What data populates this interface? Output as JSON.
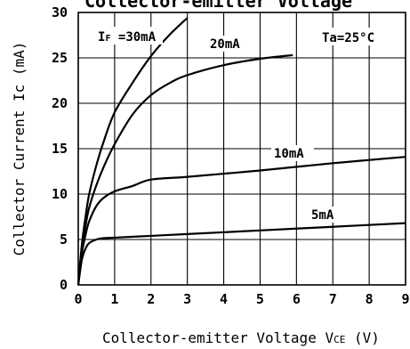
{
  "chart_data": {
    "type": "line",
    "title": "Collector-emitter Voltage",
    "xlabel": "Collector-emitter Voltage V",
    "xlabel_sub": "CE",
    "xlabel_unit": " (V)",
    "ylabel": "Collector Current Ic (mA)",
    "xlim": [
      0,
      9
    ],
    "ylim": [
      0,
      30
    ],
    "x_ticks": [
      "0",
      "1",
      "2",
      "3",
      "4",
      "5",
      "6",
      "7",
      "8",
      "9"
    ],
    "y_ticks": [
      "0",
      "5",
      "10",
      "15",
      "20",
      "25",
      "30"
    ],
    "grid": true,
    "condition_label": "Ta=25°C",
    "series": [
      {
        "name": "I",
        "name_sub": "F",
        "name_rest": " =30mA",
        "x": [
          0,
          0.1,
          0.2,
          0.3,
          0.5,
          0.7,
          1.0,
          1.5,
          2.0,
          2.5,
          3.0
        ],
        "y": [
          0,
          4.5,
          7.5,
          10.0,
          13.2,
          15.8,
          19.0,
          22.3,
          25.2,
          27.5,
          29.4
        ]
      },
      {
        "name": "20mA",
        "x": [
          0,
          0.1,
          0.2,
          0.3,
          0.5,
          0.7,
          1.0,
          1.5,
          2.0,
          2.5,
          3.0,
          4.0,
          5.0,
          5.9
        ],
        "y": [
          0,
          4.0,
          6.5,
          8.5,
          11.0,
          13.0,
          15.5,
          18.8,
          20.9,
          22.2,
          23.1,
          24.2,
          24.9,
          25.3
        ]
      },
      {
        "name": "10mA",
        "x": [
          0,
          0.1,
          0.2,
          0.3,
          0.5,
          0.7,
          1.0,
          1.5,
          2.0,
          3.0,
          5.0,
          7.0,
          9.0
        ],
        "y": [
          0,
          3.5,
          5.5,
          7.0,
          8.7,
          9.6,
          10.3,
          10.9,
          11.6,
          11.9,
          12.6,
          13.4,
          14.1
        ]
      },
      {
        "name": "5mA",
        "x": [
          0,
          0.1,
          0.2,
          0.3,
          0.5,
          0.7,
          1.0,
          2.0,
          3.0,
          5.0,
          7.0,
          9.0
        ],
        "y": [
          0,
          2.8,
          4.0,
          4.6,
          5.0,
          5.15,
          5.2,
          5.4,
          5.6,
          6.0,
          6.4,
          6.8
        ]
      }
    ]
  }
}
